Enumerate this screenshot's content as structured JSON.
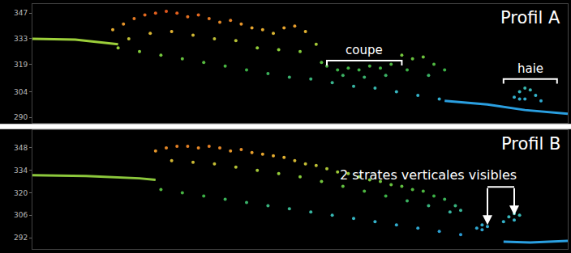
{
  "chart_data": [
    {
      "type": "scatter",
      "title": "Profil A",
      "tick_labels": "y",
      "grid": false,
      "xlim": [
        0,
        100
      ],
      "ylim": [
        287,
        352
      ],
      "yticks": [
        290,
        304,
        319,
        333,
        347
      ],
      "series": [
        {
          "type": "line",
          "color": "#9ccf3a",
          "x": [
            0,
            8,
            16
          ],
          "values": [
            333,
            332.5,
            330
          ]
        },
        {
          "type": "line",
          "color": "#2a9fe0",
          "x": [
            77,
            85,
            92,
            100
          ],
          "values": [
            299,
            297,
            294,
            292
          ]
        },
        {
          "type": "scatter",
          "x": [
            15,
            17,
            19,
            21,
            23,
            25,
            27,
            29,
            31,
            33,
            35,
            37,
            39,
            41,
            43,
            45,
            47,
            49,
            51,
            53,
            55,
            57,
            59,
            61,
            63,
            65,
            67,
            69,
            71,
            73,
            75,
            77,
            18,
            22,
            26,
            30,
            34,
            38,
            42,
            46,
            50,
            54,
            58,
            62,
            66,
            70,
            74,
            16,
            20,
            24,
            28,
            32,
            36,
            40,
            44,
            48,
            52,
            56,
            60,
            64,
            68,
            72,
            76,
            90,
            91,
            92,
            93,
            94,
            92,
            95,
            91
          ],
          "values": [
            338,
            341,
            344,
            346,
            347,
            348,
            347,
            345,
            346,
            344,
            342,
            343,
            341,
            339,
            338,
            336,
            339,
            340,
            337,
            330,
            318,
            316,
            317,
            316,
            318,
            317,
            319,
            324,
            322,
            323,
            319,
            316,
            333,
            336,
            337,
            335,
            333,
            332,
            328,
            327,
            326,
            320,
            313,
            312,
            313,
            316,
            313,
            328,
            326,
            324,
            322,
            320,
            318,
            316,
            314,
            312,
            311,
            309,
            307,
            306,
            304,
            302,
            300,
            301,
            304,
            306,
            305,
            302,
            300,
            299,
            300
          ]
        }
      ],
      "annotations": [
        {
          "text": "coupe",
          "x": [
            55,
            69
          ],
          "y": 321
        },
        {
          "text": "haie",
          "x": [
            88,
            98
          ],
          "y": 311
        }
      ]
    },
    {
      "type": "scatter",
      "title": "Profil B",
      "tick_labels": "y",
      "grid": false,
      "xlim": [
        0,
        100
      ],
      "ylim": [
        285,
        359
      ],
      "yticks": [
        292,
        306,
        320,
        334,
        348
      ],
      "series": [
        {
          "type": "line",
          "color": "#8cc83c",
          "x": [
            0,
            10,
            20,
            23
          ],
          "values": [
            331,
            330.5,
            329,
            328
          ]
        },
        {
          "type": "line",
          "color": "#2a9fe0",
          "x": [
            88,
            93,
            100
          ],
          "values": [
            289.5,
            289,
            290
          ]
        },
        {
          "type": "scatter",
          "x": [
            23,
            25,
            27,
            29,
            31,
            33,
            35,
            37,
            39,
            41,
            43,
            45,
            47,
            49,
            51,
            53,
            55,
            57,
            59,
            61,
            63,
            65,
            67,
            69,
            71,
            73,
            75,
            77,
            79,
            80,
            26,
            30,
            34,
            38,
            42,
            46,
            50,
            54,
            58,
            62,
            66,
            70,
            74,
            78,
            24,
            28,
            32,
            36,
            40,
            44,
            48,
            52,
            56,
            60,
            64,
            68,
            72,
            76,
            80,
            83,
            84,
            85,
            84,
            89,
            90,
            91,
            90,
            88
          ],
          "values": [
            346,
            348,
            349,
            349,
            348,
            349,
            348,
            346,
            347,
            345,
            344,
            343,
            342,
            340,
            338,
            337,
            335,
            333,
            332,
            330,
            328,
            327,
            325,
            324,
            322,
            321,
            318,
            316,
            312,
            309,
            340,
            339,
            338,
            336,
            334,
            332,
            330,
            327,
            324,
            321,
            318,
            315,
            312,
            308,
            322,
            320,
            318,
            316,
            314,
            312,
            310,
            308,
            306,
            304,
            302,
            300,
            298,
            296,
            294,
            298,
            300,
            299,
            297,
            305,
            307,
            306,
            303,
            302
          ]
        }
      ],
      "annotations": [
        {
          "text": "2 strates verticales visibles",
          "x": 74,
          "y": 331,
          "targets": [
            [
              85,
              300
            ],
            [
              90,
              306
            ]
          ]
        }
      ]
    }
  ]
}
